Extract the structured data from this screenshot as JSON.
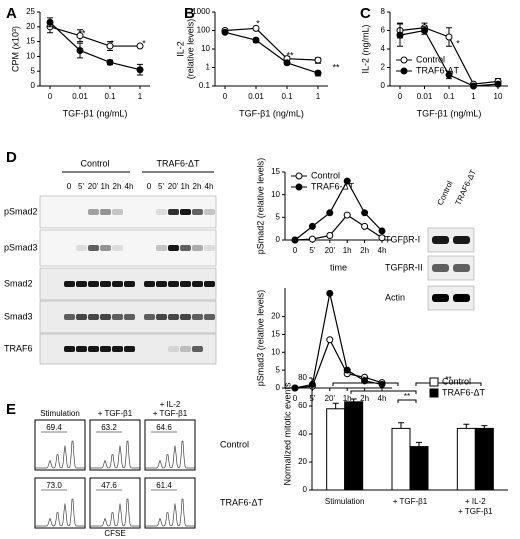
{
  "labels": {
    "panels": [
      "A",
      "B",
      "C",
      "D",
      "E"
    ],
    "blot_left": {
      "groups": [
        "Control",
        "TRAF6-ΔT"
      ],
      "times": [
        "0",
        "5'",
        "20'",
        "1h",
        "2h",
        "4h"
      ],
      "rows": [
        "pSmad2",
        "pSmad3",
        "Smad2",
        "Smad3",
        "TRAF6"
      ]
    },
    "blot_right": {
      "columns": [
        "Control",
        "TRAF6-ΔT"
      ],
      "rows": [
        "TGFβR-I",
        "TGFβR-II",
        "Actin"
      ]
    },
    "flow": {
      "columns": [
        [
          "Stimulation"
        ],
        [
          "+ TGF-β1"
        ],
        [
          "+ IL-2",
          "+ TGF-β1"
        ]
      ],
      "rows": [
        "Control",
        "TRAF6-ΔT"
      ],
      "percentages": [
        [
          "69.4",
          "63.2",
          "64.6"
        ],
        [
          "73.0",
          "47.6",
          "61.4"
        ]
      ],
      "xlabel": "CFSE"
    }
  },
  "chart_data": [
    {
      "type": "line",
      "xlabel": "TGF-β1 (ng/mL)",
      "ylabel": [
        "CPM (x10³)"
      ],
      "categories": [
        "0",
        "0.01",
        "0.1",
        "1"
      ],
      "ylim": [
        0,
        25
      ],
      "yticks": [
        0,
        5,
        10,
        15,
        20,
        25
      ],
      "series": [
        {
          "color": "#000000",
          "marker": "open",
          "values": [
            20,
            17,
            13.5,
            13.5
          ],
          "errors": [
            2,
            2,
            1.5,
            0.5
          ]
        },
        {
          "color": "#000000",
          "marker": "filled",
          "values": [
            21.5,
            12,
            8,
            5.5
          ],
          "errors": [
            1.5,
            2.5,
            0.8,
            1.8
          ]
        }
      ],
      "annotations": [
        "**",
        "*",
        "*"
      ]
    },
    {
      "type": "line",
      "xlabel": "TGF-β1 (ng/mL)",
      "ylabel": [
        "IL-2",
        "(relative levels)"
      ],
      "categories": [
        "0",
        "0.01",
        "0.1",
        "1"
      ],
      "log_y": true,
      "ylim": [
        0.1,
        1000
      ],
      "yticks": [
        0.1,
        1,
        10,
        100,
        1000
      ],
      "series": [
        {
          "color": "#000000",
          "marker": "open",
          "values": [
            100,
            130,
            3,
            2.5
          ],
          "errors": [
            10,
            20,
            1,
            0.8
          ]
        },
        {
          "color": "#000000",
          "marker": "filled",
          "values": [
            80,
            30,
            1.8,
            0.5
          ],
          "errors": [
            10,
            8,
            0.4,
            0.15
          ]
        }
      ],
      "annotations": [
        "*",
        "**",
        "**"
      ]
    },
    {
      "type": "line",
      "xlabel": "TGF-β1 (ng/mL)",
      "ylabel": [
        "IL-2 (ng/mL)"
      ],
      "categories": [
        "0",
        "0.01",
        "0.1",
        "1",
        "10"
      ],
      "ylim": [
        0,
        8
      ],
      "yticks": [
        0,
        2,
        4,
        6,
        8
      ],
      "legend": "lower left",
      "series": [
        {
          "name": "Control",
          "color": "#000000",
          "marker": "open",
          "values": [
            6,
            6.3,
            5.3,
            0.2,
            0.5
          ],
          "errors": [
            0.8,
            0.5,
            1,
            0.1,
            0.3
          ]
        },
        {
          "name": "TRAF6-ΔT",
          "color": "#000000",
          "marker": "filled",
          "values": [
            5.5,
            6,
            1.2,
            0,
            0.2
          ],
          "errors": [
            1.2,
            0.4,
            0.4,
            0.05,
            0.1
          ]
        }
      ],
      "annotations": [
        "*"
      ]
    },
    {
      "type": "line",
      "xlabel": "time",
      "ylabel": [
        "pSmad2 (relative levels)"
      ],
      "categories": [
        "0",
        "5'",
        "20'",
        "1h",
        "2h",
        "4h"
      ],
      "ylim": [
        0,
        15
      ],
      "yticks": [
        0,
        5,
        10,
        15
      ],
      "legend": "upper left",
      "series": [
        {
          "name": "Control",
          "color": "#000000",
          "marker": "open",
          "values": [
            0,
            0.2,
            1,
            5.5,
            3,
            0.5
          ]
        },
        {
          "name": "TRAF6-ΔT",
          "color": "#000000",
          "marker": "filled",
          "values": [
            0,
            3,
            6,
            13,
            6,
            2
          ]
        }
      ]
    },
    {
      "type": "line",
      "ylabel": [
        "pSmad3 (relative levels)"
      ],
      "categories": [
        "0",
        "5'",
        "20'",
        "1h",
        "2h",
        "4h"
      ],
      "ylim": [
        0,
        28
      ],
      "yticks": [
        0,
        5,
        10,
        15,
        20
      ],
      "series": [
        {
          "color": "#000000",
          "marker": "open",
          "values": [
            0,
            0.5,
            13.5,
            4,
            3,
            1.5
          ]
        },
        {
          "color": "#000000",
          "marker": "filled",
          "values": [
            0,
            1,
            26.5,
            5,
            2,
            1
          ]
        }
      ]
    },
    {
      "type": "bar",
      "ylabel": [
        "Normalized mitotic events"
      ],
      "categories": [
        [
          "Stimulation"
        ],
        [
          "+ TGF-β1"
        ],
        [
          "+ IL-2",
          "+ TGF-β1"
        ]
      ],
      "ylim": [
        0,
        80
      ],
      "yticks": [
        0,
        20,
        40,
        60,
        80
      ],
      "legend": "upper right",
      "series": [
        {
          "name": "Control",
          "color": "#ffffff",
          "values": [
            58,
            44,
            44
          ],
          "errors": [
            4,
            4,
            3
          ]
        },
        {
          "name": "TRAF6-ΔT",
          "color": "#000000",
          "values": [
            63,
            31,
            44
          ],
          "errors": [
            2,
            3,
            2
          ]
        }
      ],
      "annotations": [
        "**",
        "*",
        "**",
        "**"
      ]
    }
  ]
}
